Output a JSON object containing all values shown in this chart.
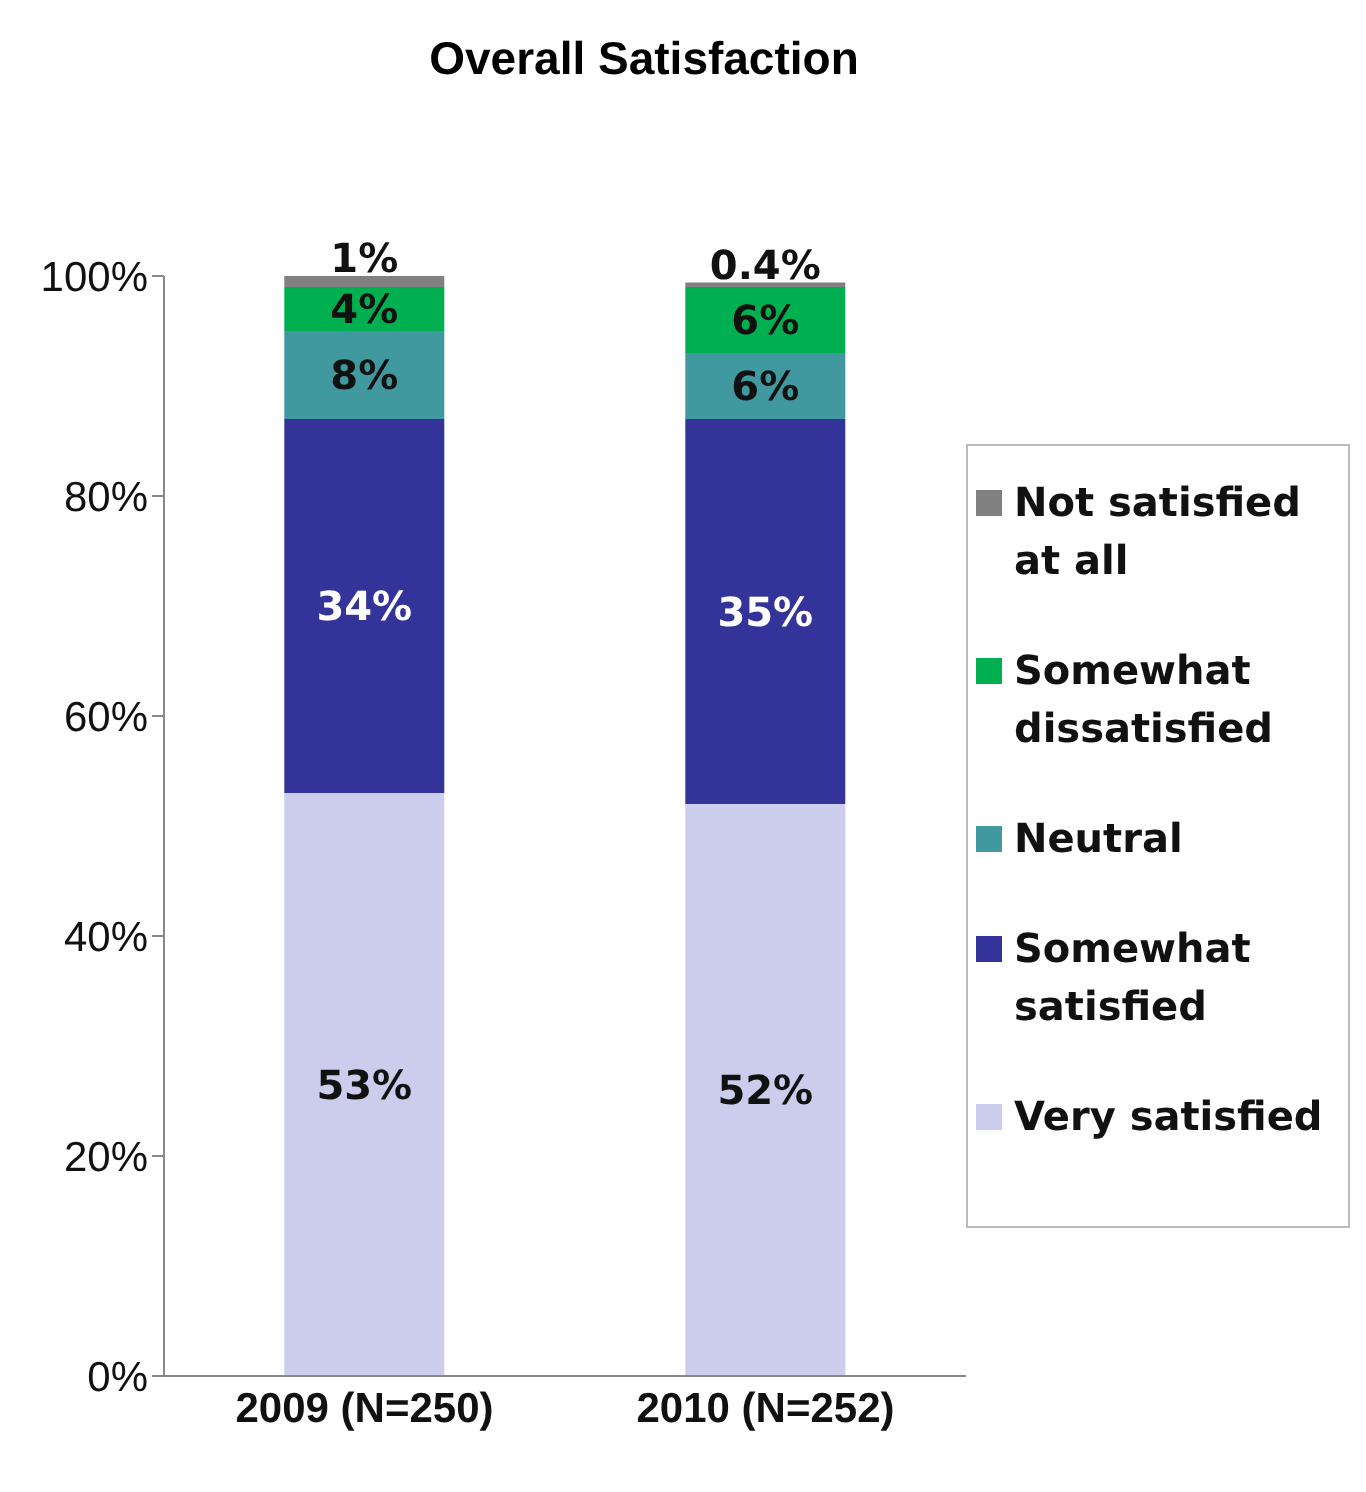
{
  "chart_data": {
    "type": "bar",
    "title": "Overall Satisfaction",
    "stacked": true,
    "categories": [
      "2009 (N=250)",
      "2010 (N=252)"
    ],
    "series": [
      {
        "name": "Very satisfied",
        "color": "#ccccec",
        "values": [
          53,
          52
        ],
        "value_labels": [
          "53%",
          "52%"
        ]
      },
      {
        "name": "Somewhat satisfied",
        "color": "#333399",
        "values": [
          34,
          35
        ],
        "value_labels": [
          "34%",
          "35%"
        ]
      },
      {
        "name": "Neutral",
        "color": "#40999f",
        "values": [
          8,
          6
        ],
        "value_labels": [
          "8%",
          "6%"
        ]
      },
      {
        "name": "Somewhat dissatisfied",
        "color": "#00b050",
        "values": [
          4,
          6
        ],
        "value_labels": [
          "4%",
          "6%"
        ]
      },
      {
        "name": "Not satisfied at all",
        "color": "#808080",
        "values": [
          1,
          0.4
        ],
        "value_labels": [
          "1%",
          "0.4%"
        ]
      }
    ],
    "ylim": [
      0,
      100
    ],
    "yticks": [
      {
        "value": 0,
        "label": "0%"
      },
      {
        "value": 20,
        "label": "20%"
      },
      {
        "value": 40,
        "label": "40%"
      },
      {
        "value": 60,
        "label": "60%"
      },
      {
        "value": 80,
        "label": "80%"
      },
      {
        "value": 100,
        "label": "100%"
      }
    ],
    "grid": false,
    "legend": "right"
  }
}
